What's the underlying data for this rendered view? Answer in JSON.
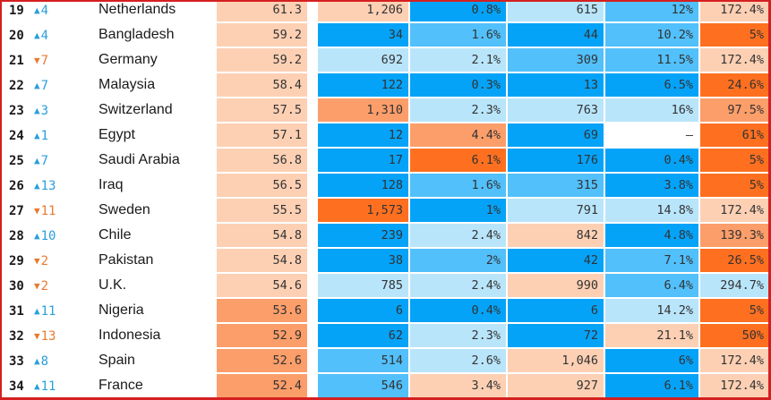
{
  "palette": {
    "peach": "#fdd0b4",
    "orange": "#fc9e6a",
    "dark_orange": "#fe7020",
    "light_blue": "#b9e5fb",
    "blue": "#52c0fb",
    "dark_blue": "#05a3f8",
    "blank": "#ffffff",
    "up_color": "#2a9fdc",
    "down_color": "#e87a30",
    "frame_border": "#d42020"
  },
  "rows": [
    {
      "rank": "19",
      "dir": "up",
      "change": "4",
      "country": "Netherlands",
      "cells": [
        {
          "v": "61.3",
          "c": "peach"
        },
        {
          "v": "1,206",
          "c": "peach"
        },
        {
          "v": "0.8%",
          "c": "dark_blue"
        },
        {
          "v": "615",
          "c": "light_blue"
        },
        {
          "v": "12%",
          "c": "blue"
        },
        {
          "v": "172.4%",
          "c": "peach"
        }
      ]
    },
    {
      "rank": "20",
      "dir": "up",
      "change": "4",
      "country": "Bangladesh",
      "cells": [
        {
          "v": "59.2",
          "c": "peach"
        },
        {
          "v": "34",
          "c": "dark_blue"
        },
        {
          "v": "1.6%",
          "c": "blue"
        },
        {
          "v": "44",
          "c": "dark_blue"
        },
        {
          "v": "10.2%",
          "c": "blue"
        },
        {
          "v": "5%",
          "c": "dark_orange"
        }
      ]
    },
    {
      "rank": "21",
      "dir": "down",
      "change": "7",
      "country": "Germany",
      "cells": [
        {
          "v": "59.2",
          "c": "peach"
        },
        {
          "v": "692",
          "c": "light_blue"
        },
        {
          "v": "2.1%",
          "c": "light_blue"
        },
        {
          "v": "309",
          "c": "blue"
        },
        {
          "v": "11.5%",
          "c": "blue"
        },
        {
          "v": "172.4%",
          "c": "peach"
        }
      ]
    },
    {
      "rank": "22",
      "dir": "up",
      "change": "7",
      "country": "Malaysia",
      "cells": [
        {
          "v": "58.4",
          "c": "peach"
        },
        {
          "v": "122",
          "c": "dark_blue"
        },
        {
          "v": "0.3%",
          "c": "dark_blue"
        },
        {
          "v": "13",
          "c": "dark_blue"
        },
        {
          "v": "6.5%",
          "c": "dark_blue"
        },
        {
          "v": "24.6%",
          "c": "dark_orange"
        }
      ]
    },
    {
      "rank": "23",
      "dir": "up",
      "change": "3",
      "country": "Switzerland",
      "cells": [
        {
          "v": "57.5",
          "c": "peach"
        },
        {
          "v": "1,310",
          "c": "orange"
        },
        {
          "v": "2.3%",
          "c": "light_blue"
        },
        {
          "v": "763",
          "c": "light_blue"
        },
        {
          "v": "16%",
          "c": "light_blue"
        },
        {
          "v": "97.5%",
          "c": "orange"
        }
      ]
    },
    {
      "rank": "24",
      "dir": "up",
      "change": "1",
      "country": "Egypt",
      "cells": [
        {
          "v": "57.1",
          "c": "peach"
        },
        {
          "v": "12",
          "c": "dark_blue"
        },
        {
          "v": "4.4%",
          "c": "orange"
        },
        {
          "v": "69",
          "c": "dark_blue"
        },
        {
          "v": "–",
          "c": "blank"
        },
        {
          "v": "61%",
          "c": "dark_orange"
        }
      ]
    },
    {
      "rank": "25",
      "dir": "up",
      "change": "7",
      "country": "Saudi Arabia",
      "cells": [
        {
          "v": "56.8",
          "c": "peach"
        },
        {
          "v": "17",
          "c": "dark_blue"
        },
        {
          "v": "6.1%",
          "c": "dark_orange"
        },
        {
          "v": "176",
          "c": "dark_blue"
        },
        {
          "v": "0.4%",
          "c": "dark_blue"
        },
        {
          "v": "5%",
          "c": "dark_orange"
        }
      ]
    },
    {
      "rank": "26",
      "dir": "up",
      "change": "13",
      "country": "Iraq",
      "cells": [
        {
          "v": "56.5",
          "c": "peach"
        },
        {
          "v": "128",
          "c": "dark_blue"
        },
        {
          "v": "1.6%",
          "c": "blue"
        },
        {
          "v": "315",
          "c": "blue"
        },
        {
          "v": "3.8%",
          "c": "dark_blue"
        },
        {
          "v": "5%",
          "c": "dark_orange"
        }
      ]
    },
    {
      "rank": "27",
      "dir": "down",
      "change": "11",
      "country": "Sweden",
      "cells": [
        {
          "v": "55.5",
          "c": "peach"
        },
        {
          "v": "1,573",
          "c": "dark_orange"
        },
        {
          "v": "1%",
          "c": "dark_blue"
        },
        {
          "v": "791",
          "c": "light_blue"
        },
        {
          "v": "14.8%",
          "c": "light_blue"
        },
        {
          "v": "172.4%",
          "c": "peach"
        }
      ]
    },
    {
      "rank": "28",
      "dir": "up",
      "change": "10",
      "country": "Chile",
      "cells": [
        {
          "v": "54.8",
          "c": "peach"
        },
        {
          "v": "239",
          "c": "dark_blue"
        },
        {
          "v": "2.4%",
          "c": "light_blue"
        },
        {
          "v": "842",
          "c": "peach"
        },
        {
          "v": "4.8%",
          "c": "dark_blue"
        },
        {
          "v": "139.3%",
          "c": "orange"
        }
      ]
    },
    {
      "rank": "29",
      "dir": "down",
      "change": "2",
      "country": "Pakistan",
      "cells": [
        {
          "v": "54.8",
          "c": "peach"
        },
        {
          "v": "38",
          "c": "dark_blue"
        },
        {
          "v": "2%",
          "c": "blue"
        },
        {
          "v": "42",
          "c": "dark_blue"
        },
        {
          "v": "7.1%",
          "c": "blue"
        },
        {
          "v": "26.5%",
          "c": "dark_orange"
        }
      ]
    },
    {
      "rank": "30",
      "dir": "down",
      "change": "2",
      "country": "U.K.",
      "cells": [
        {
          "v": "54.6",
          "c": "peach"
        },
        {
          "v": "785",
          "c": "light_blue"
        },
        {
          "v": "2.4%",
          "c": "light_blue"
        },
        {
          "v": "990",
          "c": "peach"
        },
        {
          "v": "6.4%",
          "c": "blue"
        },
        {
          "v": "294.7%",
          "c": "light_blue"
        }
      ]
    },
    {
      "rank": "31",
      "dir": "up",
      "change": "11",
      "country": "Nigeria",
      "cells": [
        {
          "v": "53.6",
          "c": "orange"
        },
        {
          "v": "6",
          "c": "dark_blue"
        },
        {
          "v": "0.4%",
          "c": "dark_blue"
        },
        {
          "v": "6",
          "c": "dark_blue"
        },
        {
          "v": "14.2%",
          "c": "light_blue"
        },
        {
          "v": "5%",
          "c": "dark_orange"
        }
      ]
    },
    {
      "rank": "32",
      "dir": "down",
      "change": "13",
      "country": "Indonesia",
      "cells": [
        {
          "v": "52.9",
          "c": "orange"
        },
        {
          "v": "62",
          "c": "dark_blue"
        },
        {
          "v": "2.3%",
          "c": "light_blue"
        },
        {
          "v": "72",
          "c": "dark_blue"
        },
        {
          "v": "21.1%",
          "c": "peach"
        },
        {
          "v": "50%",
          "c": "dark_orange"
        }
      ]
    },
    {
      "rank": "33",
      "dir": "up",
      "change": "8",
      "country": "Spain",
      "cells": [
        {
          "v": "52.6",
          "c": "orange"
        },
        {
          "v": "514",
          "c": "blue"
        },
        {
          "v": "2.6%",
          "c": "light_blue"
        },
        {
          "v": "1,046",
          "c": "peach"
        },
        {
          "v": "6%",
          "c": "dark_blue"
        },
        {
          "v": "172.4%",
          "c": "peach"
        }
      ]
    },
    {
      "rank": "34",
      "dir": "up",
      "change": "11",
      "country": "France",
      "cells": [
        {
          "v": "52.4",
          "c": "orange"
        },
        {
          "v": "546",
          "c": "blue"
        },
        {
          "v": "3.4%",
          "c": "peach"
        },
        {
          "v": "927",
          "c": "peach"
        },
        {
          "v": "6.1%",
          "c": "dark_blue"
        },
        {
          "v": "172.4%",
          "c": "peach"
        }
      ]
    }
  ]
}
